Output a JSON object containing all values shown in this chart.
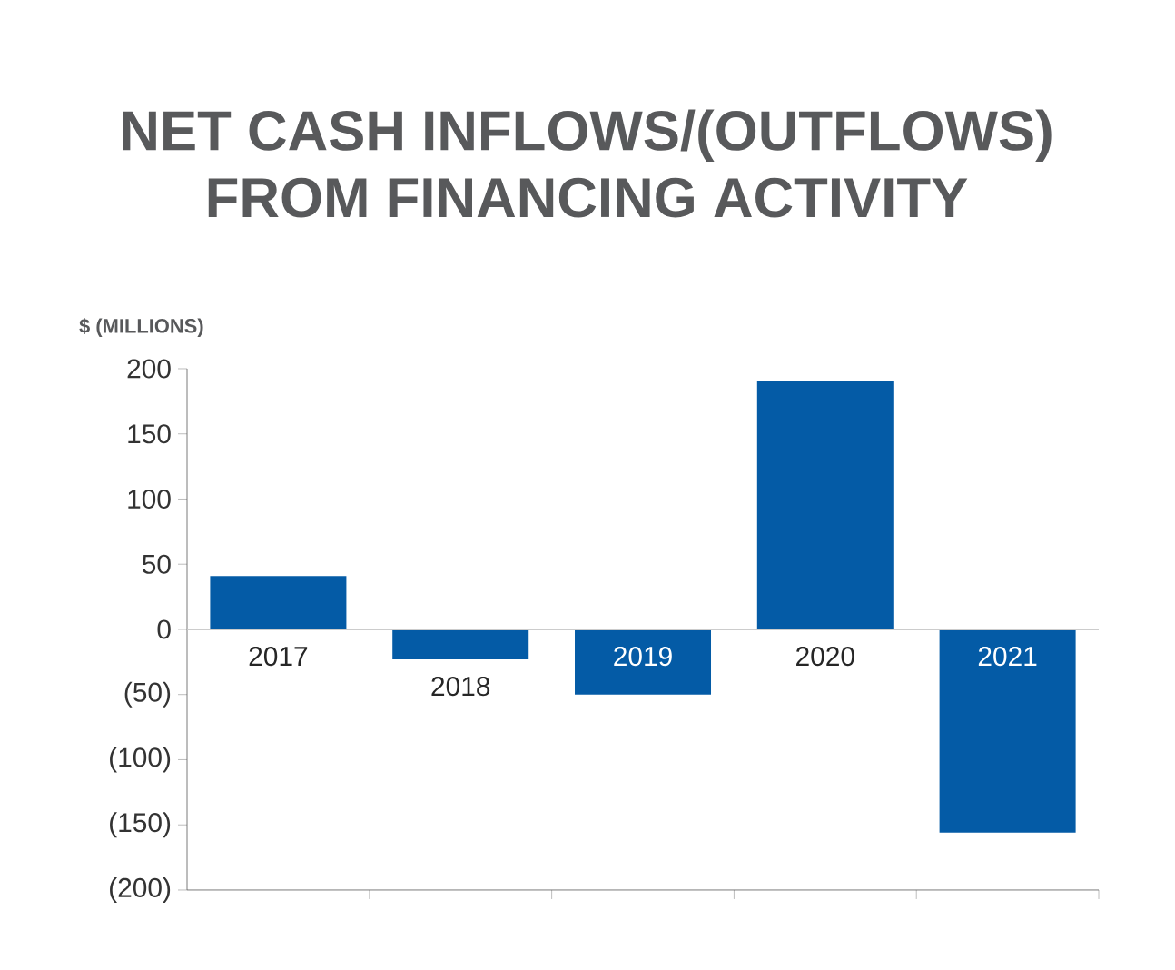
{
  "chart_data": {
    "type": "bar",
    "title": "NET CASH INFLOWS/(OUTFLOWS)\nFROM FINANCING ACTIVITY",
    "ylabel": "$ (MILLIONS)",
    "categories": [
      "2017",
      "2018",
      "2019",
      "2020",
      "2021"
    ],
    "values": [
      41,
      -23,
      -50,
      191,
      -156
    ],
    "color": "#045ba6",
    "ylim": [
      -200,
      200
    ],
    "yticks": [
      {
        "value": -200,
        "label": "(200)"
      },
      {
        "value": -150,
        "label": "(150)"
      },
      {
        "value": -100,
        "label": "(100)"
      },
      {
        "value": -50,
        "label": "(50)"
      },
      0,
      50,
      100,
      150,
      200
    ],
    "grid": false
  }
}
